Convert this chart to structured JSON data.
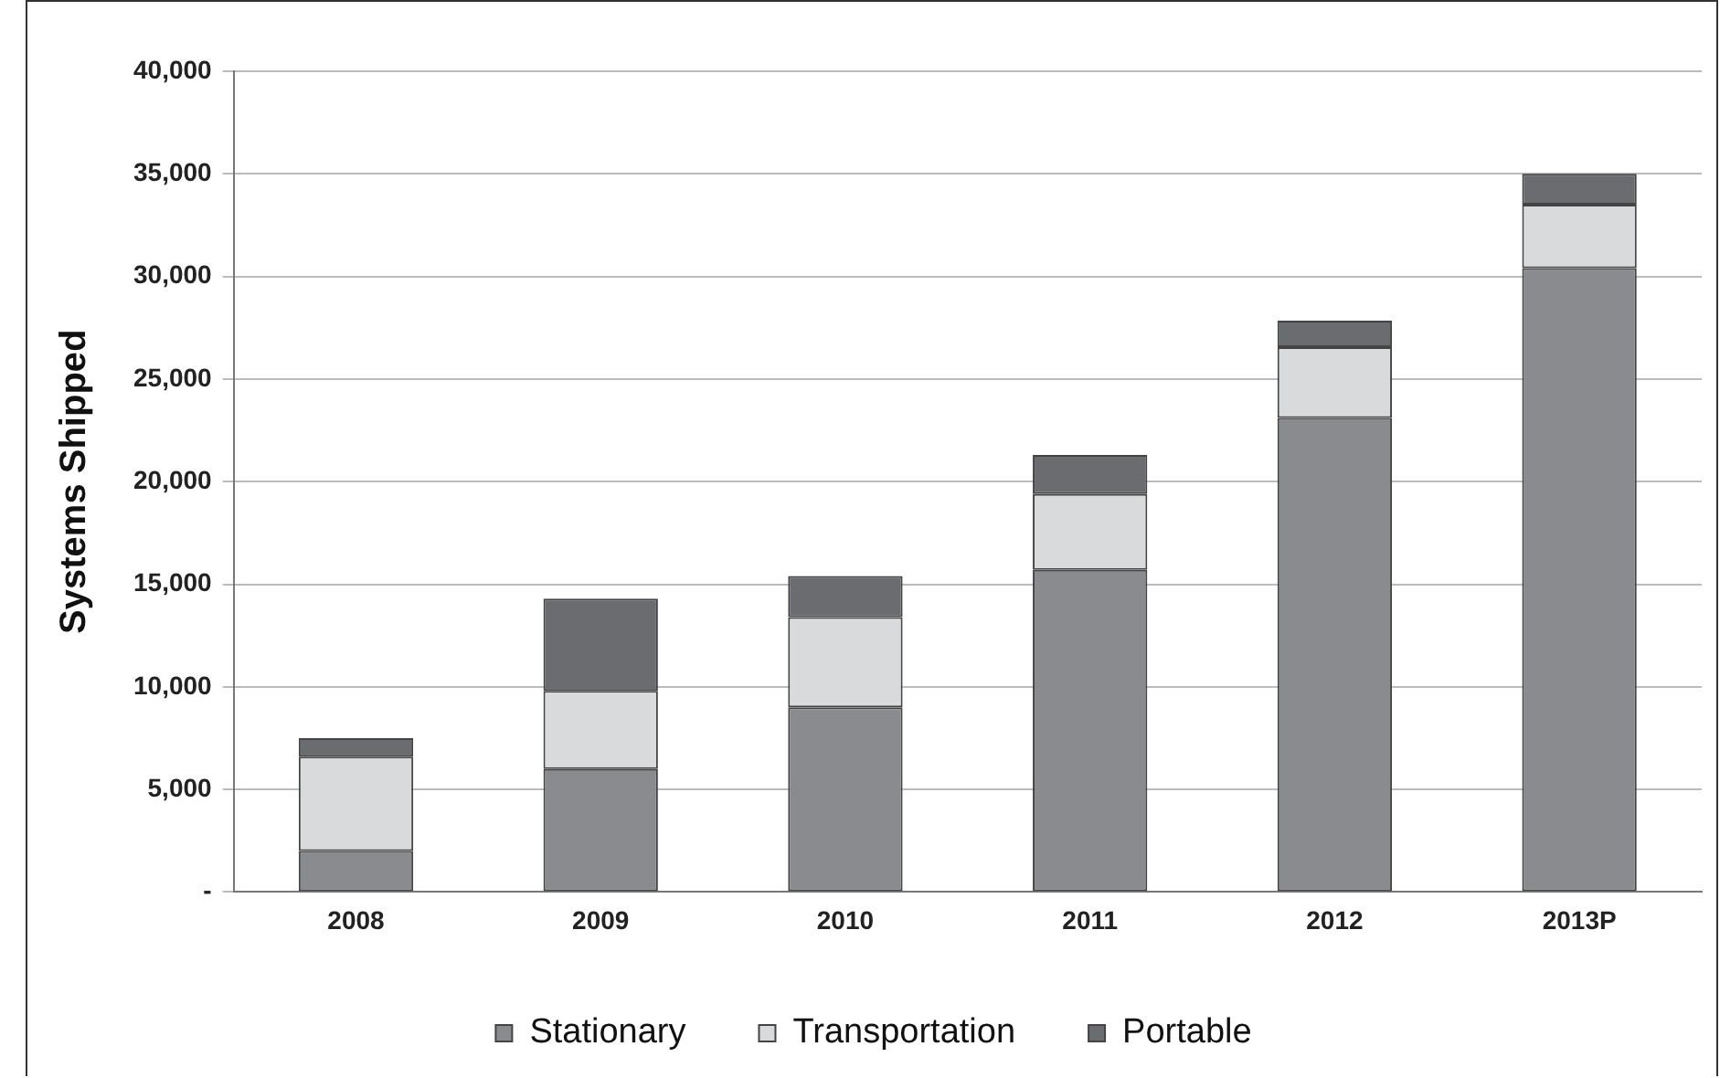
{
  "chart_data": {
    "type": "bar",
    "stacked": true,
    "ylabel": "Systems Shipped",
    "categories": [
      "2008",
      "2009",
      "2010",
      "2011",
      "2012",
      "2013P"
    ],
    "series": [
      {
        "name": "Stationary",
        "color": "#8a8b8f",
        "values": [
          2000,
          6000,
          9000,
          15700,
          23100,
          30400
        ]
      },
      {
        "name": "Transportation",
        "color": "#d9dadc",
        "values": [
          4600,
          3800,
          4400,
          3700,
          3450,
          3100
        ]
      },
      {
        "name": "Portable",
        "color": "#6b6c70",
        "values": [
          900,
          4500,
          2000,
          1900,
          1300,
          1500
        ]
      }
    ],
    "ylim": [
      0,
      40000
    ],
    "yticks": [
      {
        "value": 0,
        "label": "-"
      },
      {
        "value": 5000,
        "label": "5,000"
      },
      {
        "value": 10000,
        "label": "10,000"
      },
      {
        "value": 15000,
        "label": "15,000"
      },
      {
        "value": 20000,
        "label": "20,000"
      },
      {
        "value": 25000,
        "label": "25,000"
      },
      {
        "value": 30000,
        "label": "30,000"
      },
      {
        "value": 35000,
        "label": "35,000"
      },
      {
        "value": 40000,
        "label": "40,000"
      }
    ],
    "grid": "y",
    "legend": "bottom"
  }
}
